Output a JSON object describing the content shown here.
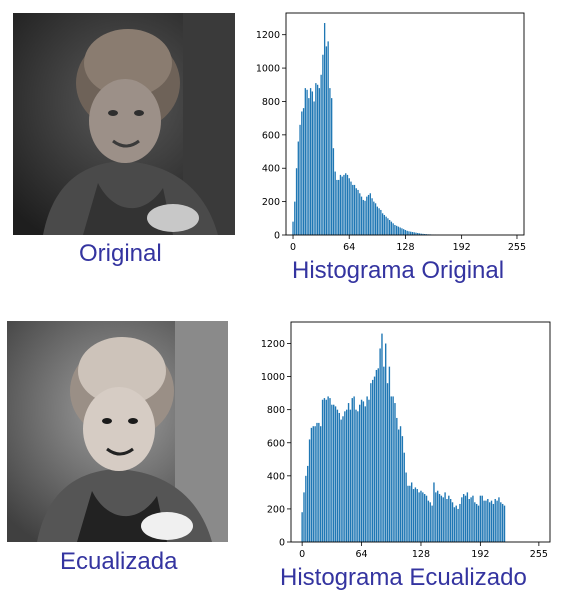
{
  "images": [
    {
      "caption": "Original",
      "photo_icon": "portrait-original-photo"
    },
    {
      "caption": "Ecualizada",
      "photo_icon": "portrait-equalized-photo"
    }
  ],
  "chart_data": [
    {
      "type": "bar",
      "title": "Histograma Original",
      "xlabel": "",
      "ylabel": "",
      "xlim": [
        -8,
        263
      ],
      "ylim": [
        0,
        1330
      ],
      "xticks": [
        0,
        64,
        128,
        192,
        255
      ],
      "yticks": [
        0,
        200,
        400,
        600,
        800,
        1000,
        1200
      ],
      "bar_color": "#1f77b4",
      "x": [
        0,
        2,
        4,
        6,
        8,
        10,
        12,
        14,
        16,
        18,
        20,
        22,
        24,
        26,
        28,
        30,
        32,
        34,
        36,
        38,
        40,
        42,
        44,
        46,
        48,
        50,
        52,
        54,
        56,
        58,
        60,
        62,
        64,
        66,
        68,
        70,
        72,
        74,
        76,
        78,
        80,
        82,
        84,
        86,
        88,
        90,
        92,
        94,
        96,
        98,
        100,
        102,
        104,
        106,
        108,
        110,
        112,
        114,
        116,
        118,
        120,
        122,
        124,
        126,
        128,
        130,
        132,
        134,
        136,
        138,
        140,
        142,
        144,
        146,
        148,
        150,
        152,
        154,
        156,
        158,
        160,
        162,
        164,
        166,
        168,
        170,
        172,
        174,
        176,
        178,
        180,
        182,
        184,
        186,
        188,
        190,
        192,
        194,
        196,
        198,
        200,
        202,
        204,
        206,
        208,
        210,
        212,
        214,
        216,
        218,
        220,
        222,
        224,
        226,
        228,
        230,
        232,
        234,
        236,
        238,
        240,
        242,
        244,
        246,
        248,
        250,
        252,
        254
      ],
      "values": [
        80,
        200,
        400,
        560,
        660,
        740,
        760,
        880,
        870,
        820,
        880,
        860,
        800,
        910,
        900,
        880,
        960,
        1080,
        1270,
        1130,
        1160,
        880,
        820,
        520,
        380,
        330,
        330,
        360,
        350,
        360,
        370,
        360,
        340,
        320,
        300,
        300,
        280,
        270,
        250,
        230,
        210,
        205,
        230,
        240,
        250,
        220,
        200,
        190,
        170,
        160,
        150,
        130,
        120,
        110,
        100,
        90,
        80,
        70,
        60,
        55,
        50,
        45,
        40,
        35,
        30,
        25,
        22,
        20,
        18,
        16,
        14,
        12,
        10,
        8,
        7,
        6,
        5,
        4,
        4,
        3,
        2,
        2,
        1,
        1,
        0,
        0,
        0,
        0,
        0,
        0,
        0,
        0,
        0,
        0,
        0,
        0,
        0,
        0,
        0,
        0,
        0,
        0,
        0,
        0,
        0,
        0,
        0,
        0,
        0,
        0,
        0,
        0,
        0,
        0,
        0,
        0,
        0,
        0,
        0,
        0,
        0,
        0,
        0,
        0,
        0,
        0,
        0,
        0
      ],
      "x_offset": 0
    },
    {
      "type": "bar",
      "title": "Histograma Ecualizado",
      "xlabel": "",
      "ylabel": "",
      "xlim": [
        -12,
        267
      ],
      "ylim": [
        0,
        1330
      ],
      "xticks": [
        0,
        64,
        128,
        192,
        255
      ],
      "yticks": [
        0,
        200,
        400,
        600,
        800,
        1000,
        1200
      ],
      "bar_color": "#1f77b4",
      "x": [
        0,
        2,
        4,
        6,
        8,
        10,
        12,
        14,
        16,
        18,
        20,
        22,
        24,
        26,
        28,
        30,
        32,
        34,
        36,
        38,
        40,
        42,
        44,
        46,
        48,
        50,
        52,
        54,
        56,
        58,
        60,
        62,
        64,
        66,
        68,
        70,
        72,
        74,
        76,
        78,
        80,
        82,
        84,
        86,
        88,
        90,
        92,
        94,
        96,
        98,
        100,
        102,
        104,
        106,
        108,
        110,
        112,
        114,
        116,
        118,
        120,
        122,
        124,
        126,
        128,
        130,
        132,
        134,
        136,
        138,
        140,
        142,
        144,
        146,
        148,
        150,
        152,
        154,
        156,
        158,
        160,
        162,
        164,
        166,
        168,
        170,
        172,
        174,
        176,
        178,
        180,
        182,
        184,
        186,
        188,
        190,
        192,
        194,
        196,
        198,
        200,
        202,
        204,
        206,
        208,
        210,
        212,
        214,
        216,
        218,
        220,
        222,
        224,
        226,
        228,
        230,
        232,
        234,
        236,
        238,
        240,
        242,
        244,
        246,
        248,
        250,
        252,
        254
      ],
      "values": [
        180,
        300,
        400,
        460,
        620,
        690,
        700,
        700,
        720,
        720,
        700,
        860,
        870,
        860,
        880,
        870,
        830,
        830,
        820,
        800,
        780,
        740,
        760,
        790,
        800,
        840,
        800,
        870,
        880,
        800,
        790,
        830,
        860,
        850,
        820,
        880,
        860,
        960,
        980,
        1000,
        1040,
        1050,
        1170,
        1260,
        1060,
        1200,
        960,
        1060,
        880,
        880,
        840,
        750,
        680,
        700,
        640,
        540,
        420,
        340,
        340,
        360,
        320,
        330,
        320,
        300,
        310,
        300,
        290,
        280,
        250,
        240,
        220,
        360,
        300,
        310,
        290,
        280,
        270,
        300,
        260,
        280,
        260,
        240,
        210,
        220,
        200,
        230,
        270,
        290,
        280,
        300,
        260,
        270,
        280,
        240,
        230,
        220,
        280,
        280,
        250,
        250,
        260,
        240,
        250,
        230,
        260,
        250,
        270,
        240,
        230,
        220,
        0,
        0,
        0,
        0,
        0,
        0,
        0,
        0,
        0,
        0,
        0,
        0,
        0,
        0,
        0,
        0,
        0,
        0
      ],
      "x_offset": 0
    }
  ]
}
